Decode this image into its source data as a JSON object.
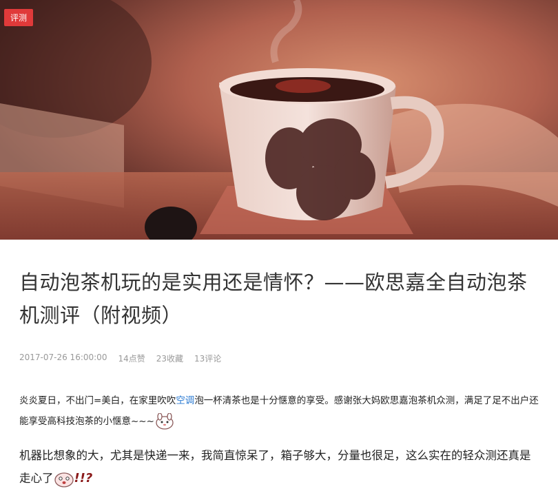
{
  "hero": {
    "tag": "评测",
    "image_icon": "tea-cup-photo"
  },
  "article": {
    "title": "自动泡茶机玩的是实用还是情怀？——欧思嘉全自动泡茶机测评（附视频）",
    "meta": {
      "date": "2017-07-26 16:00:00",
      "likes": "14点赞",
      "favorites": "23收藏",
      "comments": "13评论"
    },
    "para1": {
      "before_link": "炎炎夏日，不出门=美白，在家里吹吹",
      "link": "空调",
      "after_link": "泡一杯清茶也是十分惬意的享受。感谢张大妈欧思嘉泡茶机众测，满足了足不出户还能享受高科技泡茶的小惬意~~~"
    },
    "para2": {
      "text": "机器比想象的大，尤其是快递一来，我简直惊呆了，箱子够大，分量也很足，这么实在的轻众测还真是走心了",
      "exclaim": "!!?"
    }
  },
  "colors": {
    "tag_bg": "#e03a3a",
    "link": "#2a7ad2",
    "meta": "#999999"
  }
}
